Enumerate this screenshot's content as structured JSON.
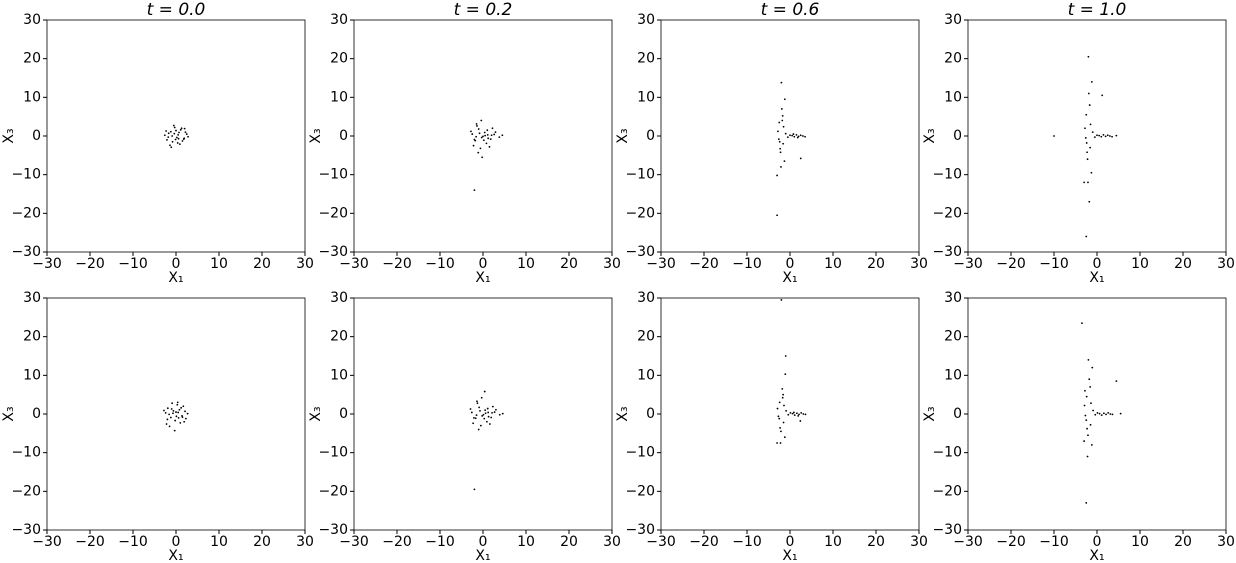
{
  "chart_data": [
    {
      "type": "scatter",
      "title": "t = 0.0",
      "x_label": "X₁",
      "y_label": "X₃",
      "color": "#000000",
      "x": [
        0.5,
        -1.2,
        1.8,
        -0.3,
        2.5,
        -2.1,
        0.9,
        -1.7,
        1.1,
        0.2,
        -0.8,
        2.0,
        -2.6,
        1.5,
        -0.5,
        0.7,
        -1.4,
        2.8,
        -0.1,
        1.3,
        -2.3,
        0.4,
        -0.9,
        1.9,
        -1.1,
        0.0,
        2.2,
        -1.8,
        0.6,
        -0.4
      ],
      "y": [
        0.3,
        1.1,
        -0.8,
        2.2,
        0.5,
        -1.0,
        -2.1,
        0.7,
        1.6,
        -0.4,
        -1.5,
        1.9,
        0.2,
        -1.3,
        2.7,
        0.9,
        -2.4,
        -0.2,
        -0.9,
        2.0,
        1.3,
        -1.8,
        0.0,
        -0.6,
        -2.9,
        1.4,
        1.0,
        -0.3,
        -0.7,
        0.6
      ],
      "xlim": [
        -30,
        30
      ],
      "ylim": [
        -30,
        30
      ],
      "xticks": [
        {
          "value": -30,
          "label": "−30"
        },
        {
          "value": -20,
          "label": "−20"
        },
        {
          "value": -10,
          "label": "−10"
        },
        0,
        10,
        20,
        30
      ],
      "yticks": [
        {
          "value": -30,
          "label": "−30"
        },
        {
          "value": -20,
          "label": "−20"
        },
        {
          "value": -10,
          "label": "−10"
        },
        0,
        10,
        20,
        30
      ]
    },
    {
      "type": "scatter",
      "title": "t = 0.2",
      "x_label": "X₁",
      "y_label": "X₃",
      "color": "#000000",
      "x": [
        -2.5,
        -1.8,
        -1.0,
        -0.3,
        0.4,
        1.2,
        2.0,
        2.9,
        3.8,
        -2.2,
        -1.4,
        -0.6,
        0.2,
        1.0,
        1.8,
        2.6,
        -2.8,
        -1.6,
        -0.4,
        0.8,
        2.2,
        -1.1,
        0.5,
        1.5,
        -2.0,
        -0.8,
        0.0,
        1.1,
        -1.5,
        -2.0,
        4.5,
        -0.2
      ],
      "y": [
        0.5,
        -1.2,
        1.8,
        -0.4,
        0.9,
        -0.6,
        0.2,
        1.0,
        -0.3,
        -2.5,
        2.6,
        -3.2,
        -1.1,
        1.5,
        -0.8,
        0.4,
        1.2,
        -0.2,
        4.0,
        -1.9,
        2.0,
        -4.3,
        0.1,
        -2.8,
        -0.9,
        0.7,
        -0.1,
        0.3,
        3.1,
        -14,
        0.2,
        -5.5
      ],
      "xlim": [
        -30,
        30
      ],
      "ylim": [
        -30,
        30
      ],
      "xticks": [
        {
          "value": -30,
          "label": "−30"
        },
        {
          "value": -20,
          "label": "−20"
        },
        {
          "value": -10,
          "label": "−10"
        },
        0,
        10,
        20,
        30
      ],
      "yticks": [
        {
          "value": -30,
          "label": "−30"
        },
        {
          "value": -20,
          "label": "−20"
        },
        {
          "value": -10,
          "label": "−10"
        },
        0,
        10,
        20,
        30
      ]
    },
    {
      "type": "scatter",
      "title": "t = 0.6",
      "x_label": "X₁",
      "y_label": "X₃",
      "color": "#000000",
      "x": [
        -2.5,
        -2.2,
        -1.9,
        -1.6,
        -2.8,
        -1.3,
        -2.0,
        -2.4,
        -1.7,
        -2.1,
        -1.5,
        -2.6,
        -1.2,
        -2.3,
        -1.0,
        -0.5,
        0.0,
        0.5,
        1.0,
        1.5,
        2.0,
        2.5,
        3.0,
        3.5,
        0.8,
        1.8,
        -3.0,
        -3.0,
        2.5,
        -1.8
      ],
      "y": [
        3.5,
        -4.2,
        7.0,
        -2.0,
        1.2,
        -6.5,
        13.8,
        -1.5,
        5.2,
        -8.0,
        2.4,
        -0.8,
        9.5,
        -3.3,
        0.6,
        -0.3,
        0.2,
        0.1,
        -0.2,
        0.3,
        -0.1,
        0.2,
        0.0,
        -0.2,
        0.5,
        -0.4,
        -20.5,
        -10.2,
        -5.8,
        4.0
      ],
      "xlim": [
        -30,
        30
      ],
      "ylim": [
        -30,
        30
      ],
      "xticks": [
        {
          "value": -30,
          "label": "−30"
        },
        {
          "value": -20,
          "label": "−20"
        },
        {
          "value": -10,
          "label": "−10"
        },
        0,
        10,
        20,
        30
      ],
      "yticks": [
        {
          "value": -30,
          "label": "−30"
        },
        {
          "value": -20,
          "label": "−20"
        },
        {
          "value": -10,
          "label": "−10"
        },
        0,
        10,
        20,
        30
      ]
    },
    {
      "type": "scatter",
      "title": "t = 1.0",
      "x_label": "X₁",
      "y_label": "X₃",
      "color": "#000000",
      "x": [
        -2.5,
        -2.2,
        -1.9,
        -1.6,
        -2.8,
        -1.3,
        -2.0,
        -2.4,
        -1.7,
        -2.1,
        -1.5,
        -2.6,
        -1.2,
        -2.3,
        -1.0,
        -0.5,
        0.0,
        0.5,
        1.0,
        1.5,
        2.0,
        2.5,
        3.0,
        3.5,
        4.5,
        -10,
        -2.5,
        -1.8,
        1.2,
        -3.0
      ],
      "y": [
        5.5,
        -6.0,
        11.0,
        -3.0,
        2.0,
        -9.5,
        20.5,
        -1.8,
        8.0,
        -12.0,
        3.0,
        -0.5,
        14.0,
        -4.2,
        1.0,
        -0.3,
        0.2,
        0.1,
        -0.2,
        0.3,
        -0.1,
        0.2,
        0.0,
        -0.2,
        0.1,
        0.0,
        -26.0,
        -17.0,
        10.5,
        -12.0
      ],
      "xlim": [
        -30,
        30
      ],
      "ylim": [
        -30,
        30
      ],
      "xticks": [
        {
          "value": -30,
          "label": "−30"
        },
        {
          "value": -20,
          "label": "−20"
        },
        {
          "value": -10,
          "label": "−10"
        },
        0,
        10,
        20,
        30
      ],
      "yticks": [
        {
          "value": -30,
          "label": "−30"
        },
        {
          "value": -20,
          "label": "−20"
        },
        {
          "value": -10,
          "label": "−10"
        },
        0,
        10,
        20,
        30
      ]
    },
    {
      "type": "scatter",
      "x_label": "X₁",
      "y_label": "X₃",
      "color": "#000000",
      "x": [
        -0.6,
        1.4,
        -1.9,
        0.3,
        2.3,
        -2.4,
        1.0,
        -1.2,
        0.8,
        -0.2,
        1.7,
        -2.0,
        0.5,
        -0.9,
        2.7,
        -1.5,
        0.1,
        1.2,
        -2.8,
        0.6,
        -0.7,
        1.9,
        -1.6,
        0.4,
        -0.3,
        2.1,
        -1.0,
        1.5,
        -2.2,
        0.0
      ],
      "y": [
        0.8,
        -0.5,
        1.5,
        2.4,
        -1.2,
        0.3,
        -2.3,
        -0.9,
        1.1,
        -1.7,
        2.0,
        -1.4,
        0.4,
        2.8,
        0.1,
        -3.2,
        -0.6,
        1.6,
        0.9,
        -1.0,
        0.2,
        -2.0,
        -0.1,
        3.0,
        -4.3,
        0.7,
        1.3,
        -0.8,
        -2.6,
        0.5
      ],
      "xlim": [
        -30,
        30
      ],
      "ylim": [
        -30,
        30
      ],
      "xticks": [
        {
          "value": -30,
          "label": "−30"
        },
        {
          "value": -20,
          "label": "−20"
        },
        {
          "value": -10,
          "label": "−10"
        },
        0,
        10,
        20,
        30
      ],
      "yticks": [
        {
          "value": -30,
          "label": "−30"
        },
        {
          "value": -20,
          "label": "−20"
        },
        {
          "value": -10,
          "label": "−10"
        },
        0,
        10,
        20,
        30
      ]
    },
    {
      "type": "scatter",
      "x_label": "X₁",
      "y_label": "X₃",
      "color": "#000000",
      "x": [
        -2.6,
        -1.7,
        -0.9,
        -0.2,
        0.5,
        1.3,
        2.1,
        3.0,
        3.9,
        -2.3,
        -1.3,
        -0.5,
        0.3,
        1.1,
        1.9,
        2.7,
        -2.9,
        -1.5,
        -0.3,
        0.9,
        2.3,
        -1.0,
        0.6,
        1.6,
        -2.1,
        -0.7,
        0.1,
        1.2,
        -1.4,
        -2.0,
        4.6,
        0.4
      ],
      "y": [
        0.4,
        -1.1,
        1.7,
        -0.5,
        1.0,
        -0.7,
        0.3,
        1.1,
        -0.2,
        -2.4,
        2.8,
        -3.0,
        -1.2,
        1.4,
        -0.9,
        0.5,
        1.3,
        -0.3,
        4.2,
        -2.0,
        1.9,
        -4.0,
        0.2,
        -2.6,
        -1.0,
        0.8,
        -0.2,
        0.4,
        3.3,
        -19.5,
        0.1,
        5.8
      ],
      "xlim": [
        -30,
        30
      ],
      "ylim": [
        -30,
        30
      ],
      "xticks": [
        {
          "value": -30,
          "label": "−30"
        },
        {
          "value": -20,
          "label": "−20"
        },
        {
          "value": -10,
          "label": "−10"
        },
        0,
        10,
        20,
        30
      ],
      "yticks": [
        {
          "value": -30,
          "label": "−30"
        },
        {
          "value": -20,
          "label": "−20"
        },
        {
          "value": -10,
          "label": "−10"
        },
        0,
        10,
        20,
        30
      ]
    },
    {
      "type": "scatter",
      "x_label": "X₁",
      "y_label": "X₃",
      "color": "#000000",
      "x": [
        -2.4,
        -2.1,
        -1.8,
        -1.5,
        -2.9,
        -1.2,
        -1.0,
        -2.5,
        -1.6,
        -2.2,
        -1.4,
        -2.7,
        -1.1,
        -2.3,
        -0.9,
        -0.4,
        0.1,
        0.6,
        1.1,
        1.6,
        2.1,
        2.6,
        3.1,
        3.6,
        0.9,
        1.9,
        -3.0,
        -2.0,
        2.4,
        -1.7
      ],
      "y": [
        3.0,
        -4.5,
        6.5,
        -2.2,
        1.4,
        -6.0,
        15.0,
        -1.2,
        5.0,
        -7.5,
        2.2,
        -0.6,
        10.3,
        -3.6,
        0.8,
        -0.2,
        0.3,
        0.1,
        -0.3,
        0.2,
        -0.1,
        0.3,
        0.0,
        -0.1,
        0.4,
        -0.5,
        -7.5,
        29.5,
        -1.8,
        4.2
      ],
      "xlim": [
        -30,
        30
      ],
      "ylim": [
        -30,
        30
      ],
      "xticks": [
        {
          "value": -30,
          "label": "−30"
        },
        {
          "value": -20,
          "label": "−20"
        },
        {
          "value": -10,
          "label": "−10"
        },
        0,
        10,
        20,
        30
      ],
      "yticks": [
        {
          "value": -30,
          "label": "−30"
        },
        {
          "value": -20,
          "label": "−20"
        },
        {
          "value": -10,
          "label": "−10"
        },
        0,
        10,
        20,
        30
      ]
    },
    {
      "type": "scatter",
      "x_label": "X₁",
      "y_label": "X₃",
      "color": "#000000",
      "x": [
        -2.4,
        -2.1,
        -1.8,
        -1.5,
        -2.9,
        -1.2,
        -2.0,
        -2.5,
        -1.6,
        -2.2,
        -1.4,
        -2.7,
        -1.1,
        -2.3,
        -0.9,
        -0.4,
        0.1,
        0.6,
        1.1,
        1.6,
        2.1,
        2.6,
        3.1,
        3.6,
        5.5,
        -3.5,
        -2.5,
        -2.8,
        4.5,
        -3.0
      ],
      "y": [
        4.5,
        -5.5,
        9.0,
        -2.8,
        2.2,
        -8.0,
        14.0,
        -1.6,
        7.0,
        -11.0,
        2.8,
        -0.4,
        12.0,
        -3.8,
        0.9,
        -0.2,
        0.3,
        0.1,
        -0.3,
        0.2,
        -0.1,
        0.3,
        0.0,
        -0.1,
        0.1,
        23.5,
        -23.0,
        6.0,
        8.5,
        -7.0
      ],
      "xlim": [
        -30,
        30
      ],
      "ylim": [
        -30,
        30
      ],
      "xticks": [
        {
          "value": -30,
          "label": "−30"
        },
        {
          "value": -20,
          "label": "−20"
        },
        {
          "value": -10,
          "label": "−10"
        },
        0,
        10,
        20,
        30
      ],
      "yticks": [
        {
          "value": -30,
          "label": "−30"
        },
        {
          "value": -20,
          "label": "−20"
        },
        {
          "value": -10,
          "label": "−10"
        },
        0,
        10,
        20,
        30
      ]
    }
  ]
}
